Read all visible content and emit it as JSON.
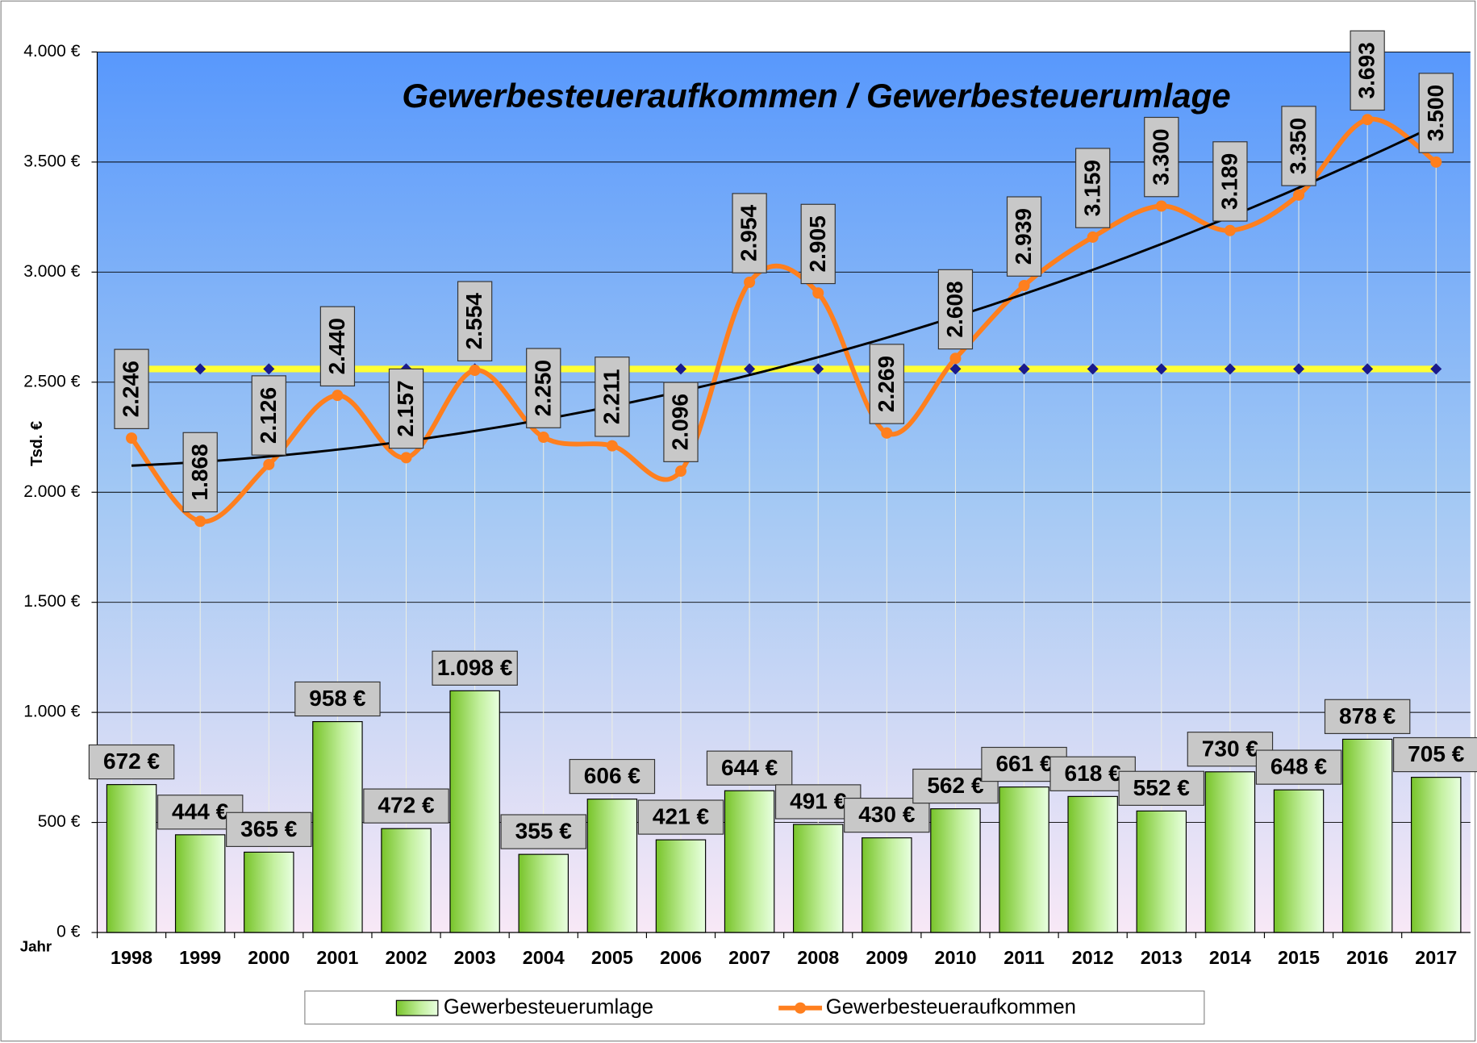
{
  "chart_data": {
    "type": "bar",
    "title": "Gewerbesteueraufkommen / Gewerbesteuerumlage",
    "y_axis_label": "Tsd. €",
    "x_axis_label": "Jahr",
    "categories": [
      "1998",
      "1999",
      "2000",
      "2001",
      "2002",
      "2003",
      "2004",
      "2005",
      "2006",
      "2007",
      "2008",
      "2009",
      "2010",
      "2011",
      "2012",
      "2013",
      "2014",
      "2015",
      "2016",
      "2017"
    ],
    "series": [
      {
        "name": "Gewerbesteuerumlage",
        "type": "bar",
        "color": "#8ed63a",
        "values": [
          672,
          444,
          365,
          958,
          472,
          1098,
          355,
          606,
          421,
          644,
          491,
          430,
          562,
          661,
          618,
          552,
          730,
          648,
          878,
          705
        ],
        "value_labels": [
          "672 €",
          "444 €",
          "365 €",
          "958 €",
          "472 €",
          "1.098 €",
          "355 €",
          "606 €",
          "421 €",
          "644 €",
          "491 €",
          "430 €",
          "562 €",
          "661 €",
          "618 €",
          "552 €",
          "730 €",
          "648 €",
          "878 €",
          "705 €"
        ]
      },
      {
        "name": "Gewerbesteueraufkommen",
        "type": "line",
        "color": "#ff7f1e",
        "values": [
          2246,
          1868,
          2126,
          2440,
          2157,
          2554,
          2250,
          2211,
          2096,
          2954,
          2905,
          2269,
          2608,
          2939,
          3159,
          3300,
          3189,
          3350,
          3693,
          3500
        ],
        "value_labels": [
          "2.246",
          "1.868",
          "2.126",
          "2.440",
          "2.157",
          "2.554",
          "2.250",
          "2.211",
          "2.096",
          "2.954",
          "2.905",
          "2.269",
          "2.608",
          "2.939",
          "3.159",
          "3.300",
          "3.189",
          "3.350",
          "3.693",
          "3.500"
        ]
      },
      {
        "type": "reference",
        "color": "#ffff33",
        "marker_color": "#1a1a8c",
        "values": [
          2560,
          2560,
          2560,
          2560,
          2560,
          2560,
          2560,
          2560,
          2560,
          2560,
          2560,
          2560,
          2560,
          2560,
          2560,
          2560,
          2560,
          2560,
          2560,
          2560
        ]
      }
    ],
    "ylim": [
      0,
      4000
    ],
    "yticks": [
      {
        "value": 0,
        "label": "0 €"
      },
      {
        "value": 500,
        "label": "500 €"
      },
      {
        "value": 1000,
        "label": "1.000 €"
      },
      {
        "value": 1500,
        "label": "1.500 €"
      },
      {
        "value": 2000,
        "label": "2.000 €"
      },
      {
        "value": 2500,
        "label": "2.500 €"
      },
      {
        "value": 3000,
        "label": "3.000 €"
      },
      {
        "value": 3500,
        "label": "3.500 €"
      },
      {
        "value": 4000,
        "label": "4.000 €"
      }
    ],
    "grid": true,
    "trendline": "polynomial"
  }
}
